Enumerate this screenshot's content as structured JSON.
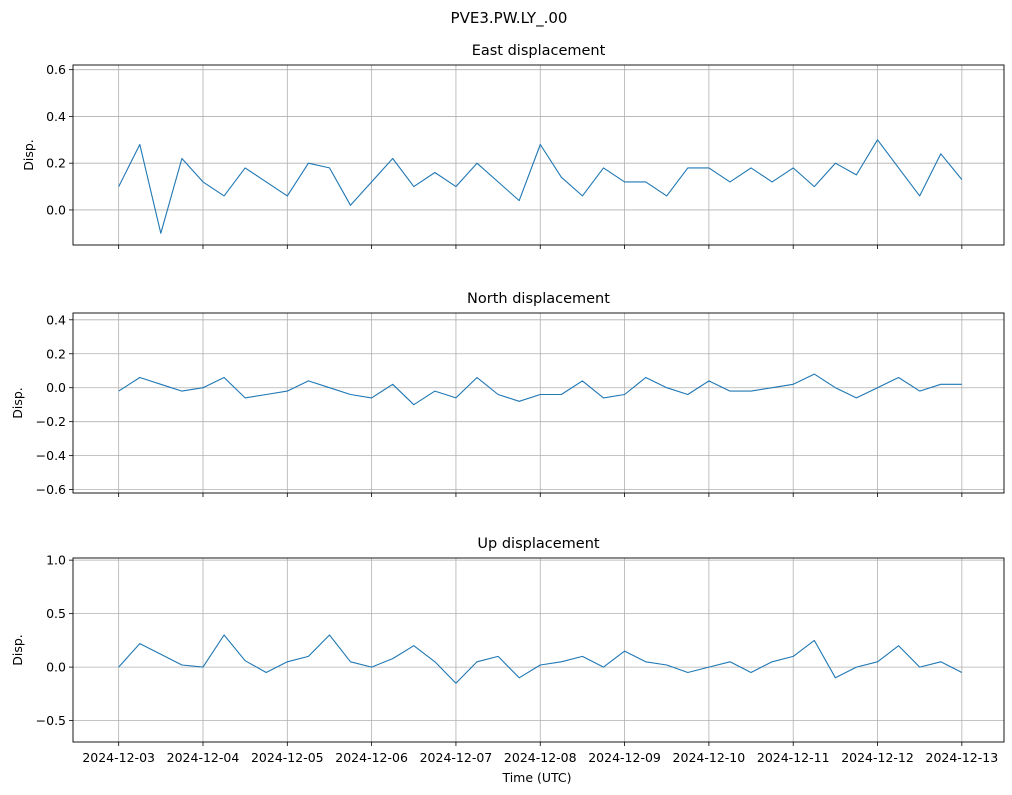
{
  "figure": {
    "suptitle": "PVE3.PW.LY_.00",
    "xlabel": "Time (UTC)",
    "line_color": "#1f77b4",
    "grid": true
  },
  "chart_data": [
    {
      "type": "line",
      "title": "East displacement",
      "ylabel": "Disp.",
      "ylim": [
        -0.15,
        0.62
      ],
      "yticks": [
        0.0,
        0.2,
        0.4,
        0.6
      ],
      "ytick_labels": [
        "0.0",
        "0.2",
        "0.4",
        "0.6"
      ],
      "xlim": [
        "2024-12-02T11:00",
        "2024-12-13T12:00"
      ],
      "show_xtick_labels": false,
      "x": [
        "2024-12-03T00:00",
        "2024-12-03T06:00",
        "2024-12-03T12:00",
        "2024-12-03T18:00",
        "2024-12-04T00:00",
        "2024-12-04T06:00",
        "2024-12-04T12:00",
        "2024-12-04T18:00",
        "2024-12-05T00:00",
        "2024-12-05T06:00",
        "2024-12-05T12:00",
        "2024-12-05T18:00",
        "2024-12-06T00:00",
        "2024-12-06T06:00",
        "2024-12-06T12:00",
        "2024-12-06T18:00",
        "2024-12-07T00:00",
        "2024-12-07T06:00",
        "2024-12-07T12:00",
        "2024-12-07T18:00",
        "2024-12-08T00:00",
        "2024-12-08T06:00",
        "2024-12-08T12:00",
        "2024-12-08T18:00",
        "2024-12-09T00:00",
        "2024-12-09T06:00",
        "2024-12-09T12:00",
        "2024-12-09T18:00",
        "2024-12-10T00:00",
        "2024-12-10T06:00",
        "2024-12-10T12:00",
        "2024-12-10T18:00",
        "2024-12-11T00:00",
        "2024-12-11T06:00",
        "2024-12-11T12:00",
        "2024-12-11T18:00",
        "2024-12-12T00:00",
        "2024-12-12T06:00",
        "2024-12-12T12:00",
        "2024-12-12T18:00",
        "2024-12-13T00:00"
      ],
      "y": [
        0.1,
        0.28,
        -0.1,
        0.22,
        0.12,
        0.06,
        0.18,
        0.12,
        0.06,
        0.2,
        0.18,
        0.02,
        0.12,
        0.22,
        0.1,
        0.16,
        0.1,
        0.2,
        0.12,
        0.04,
        0.28,
        0.14,
        0.06,
        0.18,
        0.12,
        0.12,
        0.06,
        0.18,
        0.18,
        0.12,
        0.18,
        0.12,
        0.18,
        0.1,
        0.2,
        0.15,
        0.3,
        0.18,
        0.06,
        0.24,
        0.13
      ]
    },
    {
      "type": "line",
      "title": "North displacement",
      "ylabel": "Disp.",
      "ylim": [
        -0.62,
        0.44
      ],
      "yticks": [
        -0.6,
        -0.4,
        -0.2,
        0.0,
        0.2,
        0.4
      ],
      "ytick_labels": [
        "−0.6",
        "−0.4",
        "−0.2",
        "0.0",
        "0.2",
        "0.4"
      ],
      "xlim": [
        "2024-12-02T11:00",
        "2024-12-13T12:00"
      ],
      "show_xtick_labels": false,
      "x": [
        "2024-12-03T00:00",
        "2024-12-03T06:00",
        "2024-12-03T12:00",
        "2024-12-03T18:00",
        "2024-12-04T00:00",
        "2024-12-04T06:00",
        "2024-12-04T12:00",
        "2024-12-04T18:00",
        "2024-12-05T00:00",
        "2024-12-05T06:00",
        "2024-12-05T12:00",
        "2024-12-05T18:00",
        "2024-12-06T00:00",
        "2024-12-06T06:00",
        "2024-12-06T12:00",
        "2024-12-06T18:00",
        "2024-12-07T00:00",
        "2024-12-07T06:00",
        "2024-12-07T12:00",
        "2024-12-07T18:00",
        "2024-12-08T00:00",
        "2024-12-08T06:00",
        "2024-12-08T12:00",
        "2024-12-08T18:00",
        "2024-12-09T00:00",
        "2024-12-09T06:00",
        "2024-12-09T12:00",
        "2024-12-09T18:00",
        "2024-12-10T00:00",
        "2024-12-10T06:00",
        "2024-12-10T12:00",
        "2024-12-10T18:00",
        "2024-12-11T00:00",
        "2024-12-11T06:00",
        "2024-12-11T12:00",
        "2024-12-11T18:00",
        "2024-12-12T00:00",
        "2024-12-12T06:00",
        "2024-12-12T12:00",
        "2024-12-12T18:00",
        "2024-12-13T00:00"
      ],
      "y": [
        -0.02,
        0.06,
        0.02,
        -0.02,
        0.0,
        0.06,
        -0.06,
        -0.04,
        -0.02,
        0.04,
        0.0,
        -0.04,
        -0.06,
        0.02,
        -0.1,
        -0.02,
        -0.06,
        0.06,
        -0.04,
        -0.08,
        -0.04,
        -0.04,
        0.04,
        -0.06,
        -0.04,
        0.06,
        0.0,
        -0.04,
        0.04,
        -0.02,
        -0.02,
        0.0,
        0.02,
        0.08,
        0.0,
        -0.06,
        0.0,
        0.06,
        -0.02,
        0.02,
        0.02
      ]
    },
    {
      "type": "line",
      "title": "Up displacement",
      "ylabel": "Disp.",
      "ylim": [
        -0.7,
        1.02
      ],
      "yticks": [
        -0.5,
        0.0,
        0.5,
        1.0
      ],
      "ytick_labels": [
        "−0.5",
        "0.0",
        "0.5",
        "1.0"
      ],
      "xlim": [
        "2024-12-02T11:00",
        "2024-12-13T12:00"
      ],
      "xticks": [
        "2024-12-03",
        "2024-12-04",
        "2024-12-05",
        "2024-12-06",
        "2024-12-07",
        "2024-12-08",
        "2024-12-09",
        "2024-12-10",
        "2024-12-11",
        "2024-12-12",
        "2024-12-13"
      ],
      "show_xtick_labels": true,
      "x": [
        "2024-12-03T00:00",
        "2024-12-03T06:00",
        "2024-12-03T12:00",
        "2024-12-03T18:00",
        "2024-12-04T00:00",
        "2024-12-04T06:00",
        "2024-12-04T12:00",
        "2024-12-04T18:00",
        "2024-12-05T00:00",
        "2024-12-05T06:00",
        "2024-12-05T12:00",
        "2024-12-05T18:00",
        "2024-12-06T00:00",
        "2024-12-06T06:00",
        "2024-12-06T12:00",
        "2024-12-06T18:00",
        "2024-12-07T00:00",
        "2024-12-07T06:00",
        "2024-12-07T12:00",
        "2024-12-07T18:00",
        "2024-12-08T00:00",
        "2024-12-08T06:00",
        "2024-12-08T12:00",
        "2024-12-08T18:00",
        "2024-12-09T00:00",
        "2024-12-09T06:00",
        "2024-12-09T12:00",
        "2024-12-09T18:00",
        "2024-12-10T00:00",
        "2024-12-10T06:00",
        "2024-12-10T12:00",
        "2024-12-10T18:00",
        "2024-12-11T00:00",
        "2024-12-11T06:00",
        "2024-12-11T12:00",
        "2024-12-11T18:00",
        "2024-12-12T00:00",
        "2024-12-12T06:00",
        "2024-12-12T12:00",
        "2024-12-12T18:00",
        "2024-12-13T00:00"
      ],
      "y": [
        0.0,
        0.22,
        0.12,
        0.02,
        0.0,
        0.3,
        0.06,
        -0.05,
        0.05,
        0.1,
        0.3,
        0.05,
        0.0,
        0.08,
        0.2,
        0.05,
        -0.15,
        0.05,
        0.1,
        -0.1,
        0.02,
        0.05,
        0.1,
        0.0,
        0.15,
        0.05,
        0.02,
        -0.05,
        0.0,
        0.05,
        -0.05,
        0.05,
        0.1,
        0.25,
        -0.1,
        0.0,
        0.05,
        0.2,
        0.0,
        0.05,
        -0.05
      ]
    }
  ]
}
